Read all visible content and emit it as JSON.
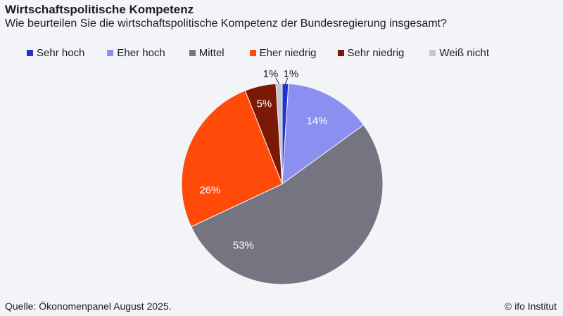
{
  "header": {
    "title": "Wirtschaftspolitische Kompetenz",
    "subtitle": "Wie beurteilen Sie die wirtschaftspolitische Kompetenz der Bundesregierung insgesamt?"
  },
  "footer": {
    "source": "Quelle: Ökonomenpanel August 2025.",
    "credit": "© ifo Institut"
  },
  "chart_data": {
    "type": "pie",
    "title": "Wirtschaftspolitische Kompetenz",
    "subtitle": "Wie beurteilen Sie die wirtschaftspolitische Kompetenz der Bundesregierung insgesamt?",
    "legend_position": "top",
    "slices": [
      {
        "label": "Sehr hoch",
        "value": 1,
        "display": "1%",
        "color": "#2433c9"
      },
      {
        "label": "Eher hoch",
        "value": 14,
        "display": "14%",
        "color": "#8a8ff0"
      },
      {
        "label": "Mittel",
        "value": 53,
        "display": "53%",
        "color": "#757582"
      },
      {
        "label": "Eher niedrig",
        "value": 26,
        "display": "26%",
        "color": "#ff4a0a"
      },
      {
        "label": "Sehr niedrig",
        "value": 5,
        "display": "5%",
        "color": "#7a1a05"
      },
      {
        "label": "Weiß nicht",
        "value": 1,
        "display": "1%",
        "color": "#c4c5cf"
      }
    ]
  }
}
